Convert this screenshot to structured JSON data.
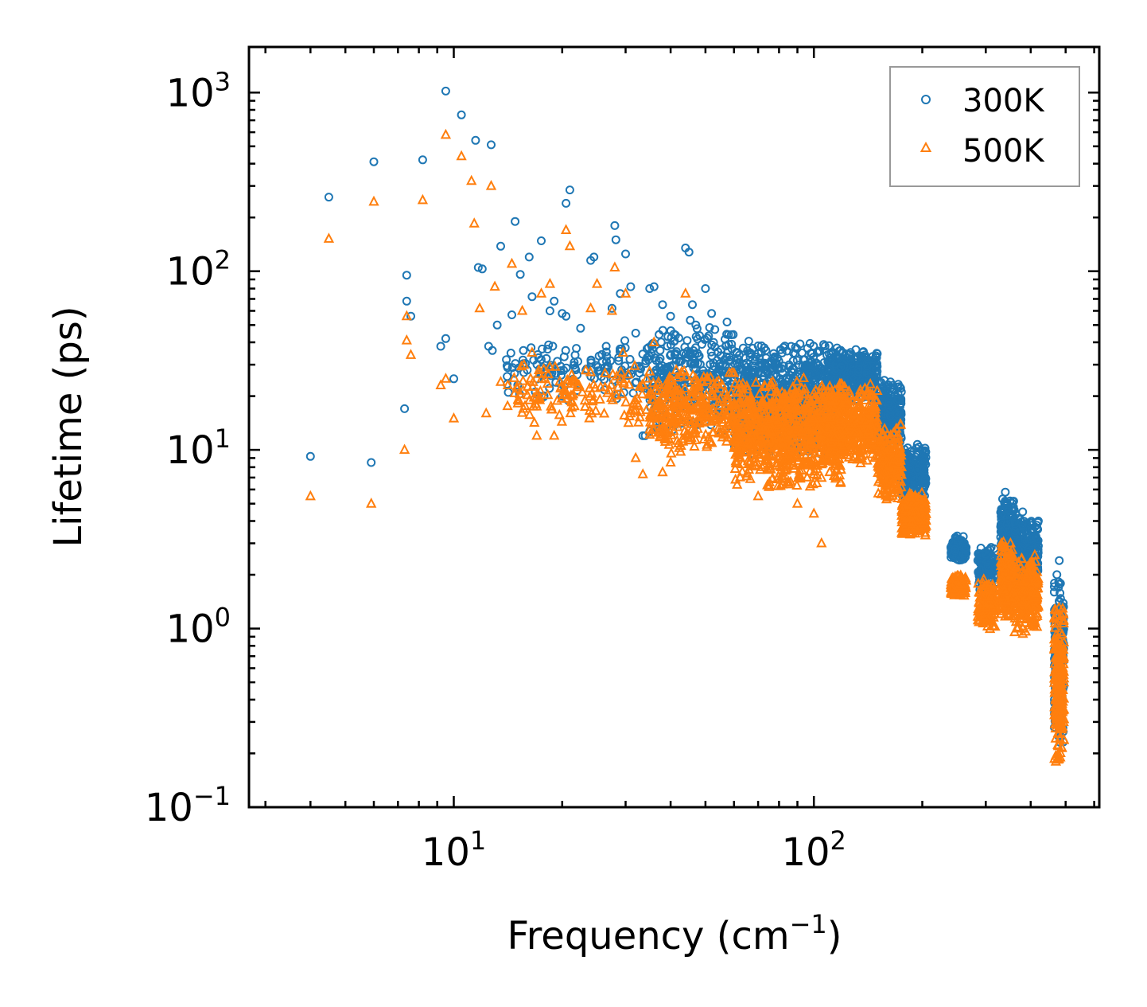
{
  "chart_data": {
    "type": "scatter",
    "title": "",
    "xlabel": "Frequency (cm",
    "xlabel_sup": "−1",
    "xlabel_close": ")",
    "ylabel": "Lifetime (ps)",
    "xscale": "log",
    "yscale": "log",
    "xlim": [
      2.7,
      620
    ],
    "ylim": [
      0.1,
      1800
    ],
    "x_ticks": [
      {
        "base": "10",
        "exp": "1",
        "value": 10
      },
      {
        "base": "10",
        "exp": "2",
        "value": 100
      }
    ],
    "y_ticks": [
      {
        "base": "10",
        "exp": "−1",
        "value": 0.1
      },
      {
        "base": "10",
        "exp": "0",
        "value": 1
      },
      {
        "base": "10",
        "exp": "1",
        "value": 10
      },
      {
        "base": "10",
        "exp": "2",
        "value": 100
      },
      {
        "base": "10",
        "exp": "3",
        "value": 1000
      }
    ],
    "legend_position": "top-right",
    "colors": {
      "300K": "#1f77b4",
      "500K": "#ff7f0e"
    },
    "series": [
      {
        "name": "300K",
        "marker": "circle",
        "points": [
          [
            4.0,
            9.2
          ],
          [
            4.5,
            260
          ],
          [
            5.9,
            8.5
          ],
          [
            6.0,
            410
          ],
          [
            7.3,
            17
          ],
          [
            7.4,
            95
          ],
          [
            7.4,
            68
          ],
          [
            7.6,
            56
          ],
          [
            8.2,
            420
          ],
          [
            9.2,
            38
          ],
          [
            9.5,
            42
          ],
          [
            9.5,
            1020
          ],
          [
            10.0,
            25
          ],
          [
            10.5,
            750
          ],
          [
            11.5,
            540
          ],
          [
            11.7,
            105
          ],
          [
            12.0,
            103
          ],
          [
            12.5,
            38
          ],
          [
            12.7,
            510
          ],
          [
            12.8,
            36
          ],
          [
            13.2,
            50
          ],
          [
            13.5,
            138
          ],
          [
            14.0,
            32
          ],
          [
            14.5,
            57
          ],
          [
            14.8,
            190
          ],
          [
            15.3,
            96
          ],
          [
            16.0,
            28
          ],
          [
            16.2,
            120
          ],
          [
            16.5,
            72
          ],
          [
            17.5,
            148
          ],
          [
            18.5,
            60
          ],
          [
            19.0,
            68
          ],
          [
            20.0,
            58
          ],
          [
            20.5,
            56
          ],
          [
            21.0,
            285
          ],
          [
            20.5,
            240
          ],
          [
            22.5,
            48
          ],
          [
            24.0,
            115
          ],
          [
            24.5,
            120
          ],
          [
            26.5,
            38
          ],
          [
            27.5,
            62
          ],
          [
            28.0,
            180
          ],
          [
            28.2,
            150
          ],
          [
            29.0,
            75
          ],
          [
            30.0,
            125
          ],
          [
            31.0,
            82
          ],
          [
            32.0,
            45
          ],
          [
            33.5,
            12
          ],
          [
            34.0,
            12
          ],
          [
            35.0,
            80
          ],
          [
            36.0,
            82
          ],
          [
            38.0,
            65
          ],
          [
            40.0,
            56
          ],
          [
            44.0,
            135
          ],
          [
            45.0,
            128
          ],
          [
            46.0,
            65
          ],
          [
            47.0,
            50
          ],
          [
            50.0,
            80
          ],
          [
            52.0,
            58
          ],
          [
            75.0,
            9.3
          ],
          [
            250,
            3.3
          ],
          [
            300,
            2.6
          ],
          [
            340,
            5.8
          ],
          [
            380,
            4.5
          ],
          [
            420,
            4.0
          ],
          [
            465,
            1.6
          ],
          [
            480,
            2.4
          ]
        ],
        "clusters": [
          {
            "x": [
              14,
              35
            ],
            "y": [
              18,
              45
            ],
            "n": 140
          },
          {
            "x": [
              35,
              60
            ],
            "y": [
              12,
              55
            ],
            "n": 300
          },
          {
            "x": [
              60,
              120
            ],
            "y": [
              9,
              42
            ],
            "n": 900
          },
          {
            "x": [
              110,
              150
            ],
            "y": [
              18,
              38
            ],
            "n": 400
          },
          {
            "x": [
              150,
              175
            ],
            "y": [
              10,
              25
            ],
            "n": 250
          },
          {
            "x": [
              175,
              205
            ],
            "y": [
              5,
              11
            ],
            "n": 250
          },
          {
            "x": [
              240,
              265
            ],
            "y": [
              2.3,
              3.3
            ],
            "n": 120
          },
          {
            "x": [
              285,
              320
            ],
            "y": [
              1.5,
              3.0
            ],
            "n": 150
          },
          {
            "x": [
              330,
              360
            ],
            "y": [
              2.0,
              5.6
            ],
            "n": 200
          },
          {
            "x": [
              360,
              420
            ],
            "y": [
              1.7,
              4.4
            ],
            "n": 250
          },
          {
            "x": [
              465,
              495
            ],
            "y": [
              0.2,
              2.2
            ],
            "n": 200
          }
        ]
      },
      {
        "name": "500K",
        "marker": "triangle",
        "points": [
          [
            4.0,
            5.5
          ],
          [
            4.5,
            152
          ],
          [
            5.9,
            5.0
          ],
          [
            6.0,
            245
          ],
          [
            7.3,
            10
          ],
          [
            7.4,
            41
          ],
          [
            7.4,
            56
          ],
          [
            7.6,
            34
          ],
          [
            8.2,
            250
          ],
          [
            9.2,
            23
          ],
          [
            9.5,
            25
          ],
          [
            9.5,
            580
          ],
          [
            10.0,
            15
          ],
          [
            10.5,
            440
          ],
          [
            11.2,
            320
          ],
          [
            11.4,
            185
          ],
          [
            11.8,
            62
          ],
          [
            12.3,
            16
          ],
          [
            12.7,
            300
          ],
          [
            13.0,
            82
          ],
          [
            13.5,
            24
          ],
          [
            14.5,
            110
          ],
          [
            15.0,
            22
          ],
          [
            15.5,
            60
          ],
          [
            16.5,
            35
          ],
          [
            17.0,
            12
          ],
          [
            17.5,
            75
          ],
          [
            18.5,
            85
          ],
          [
            19.0,
            12
          ],
          [
            20.5,
            170
          ],
          [
            21.0,
            138
          ],
          [
            24.0,
            62
          ],
          [
            25.0,
            85
          ],
          [
            27.5,
            60
          ],
          [
            28.0,
            105
          ],
          [
            29.5,
            35
          ],
          [
            30.0,
            75
          ],
          [
            31.0,
            16
          ],
          [
            32.0,
            9
          ],
          [
            33.5,
            7.3
          ],
          [
            36.0,
            40
          ],
          [
            38.0,
            7.5
          ],
          [
            40.0,
            8.5
          ],
          [
            44.0,
            75
          ],
          [
            47.0,
            25
          ],
          [
            70.0,
            5.5
          ],
          [
            75.0,
            6.2
          ],
          [
            90.0,
            5.0
          ],
          [
            100,
            4.4
          ],
          [
            105,
            3.0
          ]
        ],
        "clusters": [
          {
            "x": [
              14,
              35
            ],
            "y": [
              13,
              32
            ],
            "n": 140
          },
          {
            "x": [
              35,
              60
            ],
            "y": [
              9,
              30
            ],
            "n": 300
          },
          {
            "x": [
              60,
              120
            ],
            "y": [
              6,
              26
            ],
            "n": 900
          },
          {
            "x": [
              110,
              150
            ],
            "y": [
              8,
              24
            ],
            "n": 400
          },
          {
            "x": [
              150,
              175
            ],
            "y": [
              5,
              14
            ],
            "n": 250
          },
          {
            "x": [
              175,
              205
            ],
            "y": [
              3.2,
              6
            ],
            "n": 250
          },
          {
            "x": [
              240,
              265
            ],
            "y": [
              1.5,
              2.0
            ],
            "n": 120
          },
          {
            "x": [
              285,
              320
            ],
            "y": [
              0.95,
              1.9
            ],
            "n": 150
          },
          {
            "x": [
              330,
              360
            ],
            "y": [
              1.1,
              3.2
            ],
            "n": 200
          },
          {
            "x": [
              360,
              420
            ],
            "y": [
              0.9,
              2.6
            ],
            "n": 250
          },
          {
            "x": [
              465,
              495
            ],
            "y": [
              0.16,
              1.5
            ],
            "n": 200
          }
        ]
      }
    ]
  }
}
